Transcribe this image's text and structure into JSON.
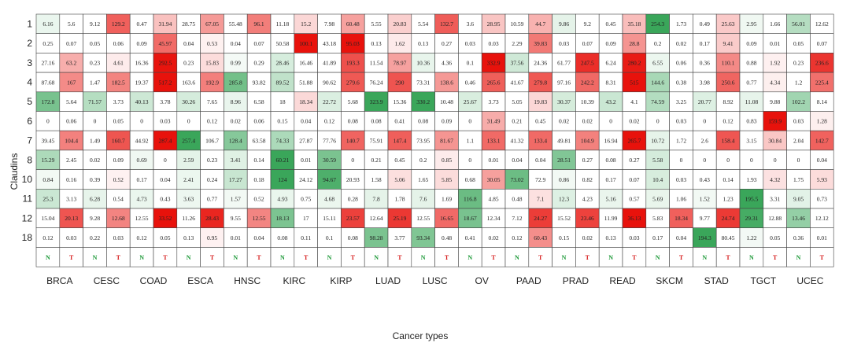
{
  "chart_data": {
    "type": "heatmap",
    "xlabel": "Cancer types",
    "ylabel": "Claudins",
    "cancer_types": [
      "BRCA",
      "CESC",
      "COAD",
      "ESCA",
      "HNSC",
      "KIRC",
      "KIRP",
      "LUAD",
      "LUSC",
      "OV",
      "PAAD",
      "PRAD",
      "READ",
      "SKCM",
      "STAD",
      "TGCT",
      "UCEC"
    ],
    "columns": [
      "N",
      "T",
      "N",
      "T",
      "N",
      "T",
      "N",
      "T",
      "N",
      "T",
      "N",
      "T",
      "N",
      "T",
      "N",
      "T",
      "N",
      "T",
      "N",
      "T",
      "N",
      "T",
      "N",
      "T",
      "N",
      "T",
      "N",
      "T",
      "N",
      "T",
      "N",
      "T",
      "N",
      "T"
    ],
    "rows": [
      "1",
      "2",
      "3",
      "4",
      "5",
      "6",
      "7",
      "8",
      "10",
      "11",
      "12",
      "18"
    ],
    "values": [
      [
        6.16,
        5.6,
        9.12,
        129.2,
        0.47,
        31.94,
        28.75,
        67.05,
        55.48,
        96.1,
        11.18,
        15.2,
        7.98,
        60.48,
        5.55,
        20.83,
        5.54,
        132.7,
        3.6,
        28.95,
        10.59,
        44.7,
        9.86,
        9.2,
        0.45,
        35.18,
        254.3,
        1.73,
        0.49,
        25.63,
        2.95,
        1.66,
        56.01,
        12.62
      ],
      [
        0.25,
        0.07,
        0.05,
        0.06,
        0.09,
        45.97,
        0.04,
        0.53,
        0.04,
        0.07,
        50.58,
        100.1,
        43.18,
        95.03,
        0.13,
        1.62,
        0.13,
        0.27,
        0.03,
        0.03,
        2.29,
        39.83,
        0.03,
        0.07,
        0.09,
        28.8,
        0.2,
        0.02,
        0.17,
        9.41,
        0.09,
        0.01,
        0.05,
        0.07
      ],
      [
        27.16,
        63.2,
        0.23,
        4.61,
        16.36,
        292.5,
        0.23,
        15.83,
        0.99,
        0.29,
        28.46,
        16.46,
        41.89,
        193.3,
        11.54,
        78.97,
        10.36,
        4.36,
        0.1,
        332.9,
        37.56,
        24.36,
        61.77,
        247.5,
        6.24,
        280.2,
        6.55,
        0.06,
        0.36,
        110.1,
        0.88,
        1.92,
        0.23,
        236.6
      ],
      [
        87.68,
        167,
        1.47,
        182.5,
        19.37,
        517.2,
        163.6,
        192.9,
        285.8,
        93.82,
        89.52,
        51.88,
        90.62,
        279.6,
        76.24,
        290,
        73.31,
        138.6,
        0.46,
        265.6,
        41.67,
        279.8,
        97.16,
        242.2,
        8.31,
        515,
        144.6,
        0.38,
        3.98,
        250.6,
        0.77,
        4.34,
        1.2,
        225.4
      ],
      [
        172.8,
        5.64,
        71.57,
        3.73,
        40.13,
        3.78,
        30.26,
        7.65,
        8.96,
        6.58,
        18,
        18.34,
        22.72,
        5.68,
        323.9,
        15.36,
        330.2,
        10.48,
        25.67,
        3.73,
        5.05,
        19.83,
        30.37,
        10.39,
        43.2,
        4.1,
        74.59,
        3.25,
        20.77,
        8.92,
        11.08,
        9.88,
        102.2,
        8.14
      ],
      [
        0,
        0.06,
        0,
        0.05,
        0,
        0.03,
        0,
        0.12,
        0.02,
        0.06,
        0.15,
        0.04,
        0.12,
        0.08,
        0.08,
        0.41,
        0.08,
        0.09,
        0,
        31.49,
        0.21,
        0.45,
        0.02,
        0.02,
        0,
        0.02,
        0,
        0.03,
        0,
        0.12,
        0.83,
        159.9,
        0.03,
        1.28
      ],
      [
        39.45,
        104.4,
        1.49,
        160.7,
        44.92,
        287.4,
        257.4,
        106.7,
        128.4,
        63.58,
        74.33,
        27.87,
        77.76,
        140.7,
        75.91,
        147.4,
        73.95,
        81.67,
        1.1,
        133.1,
        41.32,
        133.4,
        49.81,
        104.9,
        16.94,
        265.7,
        10.72,
        1.72,
        2.6,
        158.4,
        3.15,
        30.84,
        2.04,
        142.7
      ],
      [
        15.29,
        2.45,
        0.02,
        0.09,
        0.69,
        0,
        2.59,
        0.23,
        3.41,
        0.14,
        60.21,
        0.01,
        30.59,
        0,
        0.21,
        0.45,
        0.2,
        0.85,
        0,
        0.01,
        0.04,
        0.04,
        28.51,
        0.27,
        0.08,
        0.27,
        5.58,
        0,
        0,
        0,
        0,
        0,
        0,
        0.04
      ],
      [
        0.84,
        0.16,
        0.39,
        0.52,
        0.17,
        0.04,
        2.41,
        0.24,
        17.27,
        0.18,
        124,
        24.12,
        94.67,
        20.93,
        1.58,
        5.06,
        1.65,
        5.85,
        0.68,
        30.05,
        73.02,
        72.9,
        0.86,
        0.82,
        0.17,
        0.07,
        10.4,
        0.03,
        0.43,
        0.14,
        1.93,
        4.32,
        1.75,
        5.93
      ],
      [
        25.3,
        3.13,
        6.28,
        0.54,
        4.73,
        0.43,
        3.63,
        0.77,
        1.57,
        0.52,
        4.93,
        0.75,
        4.68,
        0.28,
        7.8,
        1.78,
        7.6,
        1.69,
        116.8,
        4.85,
        0.48,
        7.1,
        12.3,
        4.23,
        5.16,
        0.57,
        5.69,
        1.06,
        1.52,
        1.23,
        195.5,
        3.31,
        9.05,
        0.73
      ],
      [
        15.04,
        20.13,
        9.28,
        12.68,
        12.55,
        33.52,
        11.26,
        28.43,
        9.55,
        12.55,
        18.13,
        17,
        15.11,
        23.57,
        12.64,
        25.19,
        12.55,
        16.65,
        18.67,
        12.34,
        7.12,
        24.27,
        15.52,
        23.46,
        11.99,
        36.13,
        5.83,
        18.34,
        9.77,
        24.74,
        29.31,
        12.88,
        13.46,
        12.12
      ],
      [
        0.12,
        0.03,
        0.22,
        0.03,
        0.12,
        0.05,
        0.13,
        0.95,
        0.01,
        0.04,
        0.08,
        0.11,
        0.1,
        0.08,
        98.28,
        3.77,
        93.34,
        0.48,
        0.41,
        0.02,
        0.12,
        60.43,
        0.15,
        0.02,
        0.13,
        0.03,
        0.17,
        0.04,
        194.3,
        80.45,
        1.22,
        0.05,
        0.36,
        0.01
      ]
    ],
    "colors": {
      "normal_high": "#3aa65a",
      "tumor_high": "#e8120c",
      "normal_label": "#1f9a3a",
      "tumor_label": "#d61e1e",
      "border": "#444444"
    },
    "grid": true,
    "legend": "none"
  }
}
